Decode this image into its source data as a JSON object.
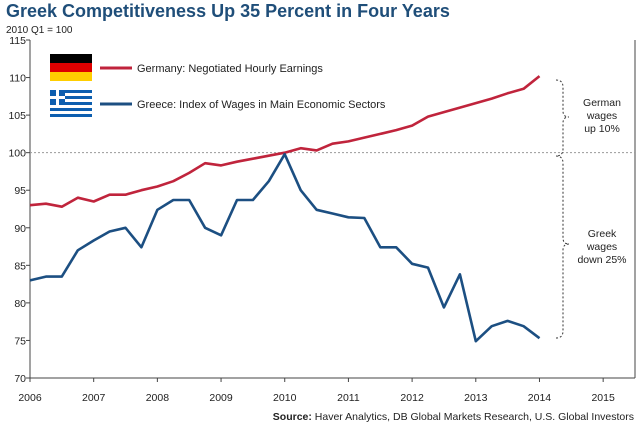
{
  "chart_data": {
    "type": "line",
    "title": "Greek Competitiveness Up 35 Percent in Four Years",
    "subtitle": "2010 Q1 = 100",
    "xlim": [
      2006,
      2015.5
    ],
    "ylim": [
      70,
      115
    ],
    "x_ticks": [
      "2006",
      "2007",
      "2008",
      "2009",
      "2010",
      "2011",
      "2012",
      "2013",
      "2014",
      "2015"
    ],
    "y_ticks": [
      "70",
      "75",
      "80",
      "85",
      "90",
      "95",
      "100",
      "105",
      "110",
      "115"
    ],
    "reference_line": 100,
    "series": [
      {
        "name": "Germany: Negotiated Hourly Earnings",
        "color": "#c0243c",
        "flag": "germany-flag",
        "x": [
          2006.0,
          2006.25,
          2006.5,
          2006.75,
          2007.0,
          2007.25,
          2007.5,
          2007.75,
          2008.0,
          2008.25,
          2008.5,
          2008.75,
          2009.0,
          2009.25,
          2009.5,
          2009.75,
          2010.0,
          2010.25,
          2010.5,
          2010.75,
          2011.0,
          2011.25,
          2011.5,
          2011.75,
          2012.0,
          2012.25,
          2012.5,
          2012.75,
          2013.0,
          2013.25,
          2013.5,
          2013.75,
          2014.0
        ],
        "values": [
          93.0,
          93.2,
          92.8,
          94.0,
          93.5,
          94.4,
          94.4,
          95.0,
          95.5,
          96.2,
          97.3,
          98.6,
          98.3,
          98.8,
          99.2,
          99.6,
          100.0,
          100.6,
          100.3,
          101.2,
          101.5,
          102.0,
          102.5,
          103.0,
          103.6,
          104.8,
          105.4,
          106.0,
          106.6,
          107.2,
          107.9,
          108.5,
          110.2
        ]
      },
      {
        "name": "Greece: Index of Wages in Main Economic Sectors",
        "color": "#1c4f82",
        "flag": "greece-flag",
        "x": [
          2006.0,
          2006.25,
          2006.5,
          2006.75,
          2007.0,
          2007.25,
          2007.5,
          2007.75,
          2008.0,
          2008.25,
          2008.5,
          2008.75,
          2009.0,
          2009.25,
          2009.5,
          2009.75,
          2010.0,
          2010.25,
          2010.5,
          2010.75,
          2011.0,
          2011.25,
          2011.5,
          2011.75,
          2012.0,
          2012.25,
          2012.5,
          2012.75,
          2013.0,
          2013.25,
          2013.5,
          2013.75,
          2014.0
        ],
        "values": [
          83.0,
          83.5,
          83.5,
          87.0,
          88.3,
          89.5,
          90.0,
          87.4,
          92.4,
          93.7,
          93.7,
          90.0,
          89.0,
          93.7,
          93.7,
          96.2,
          99.8,
          95.0,
          92.4,
          91.9,
          91.4,
          91.3,
          87.4,
          87.4,
          85.2,
          84.7,
          79.4,
          83.8,
          74.9,
          76.9,
          77.6,
          76.9,
          75.3
        ]
      }
    ],
    "annotations": [
      {
        "lines": [
          "German",
          "wages",
          "up 10%"
        ]
      },
      {
        "lines": [
          "Greek",
          "wages",
          "down 25%"
        ]
      }
    ],
    "source_label": "Source:",
    "source_text": " Haver Analytics, DB Global Markets Research, U.S. Global Investors",
    "grid": false,
    "legend": "top-left"
  }
}
